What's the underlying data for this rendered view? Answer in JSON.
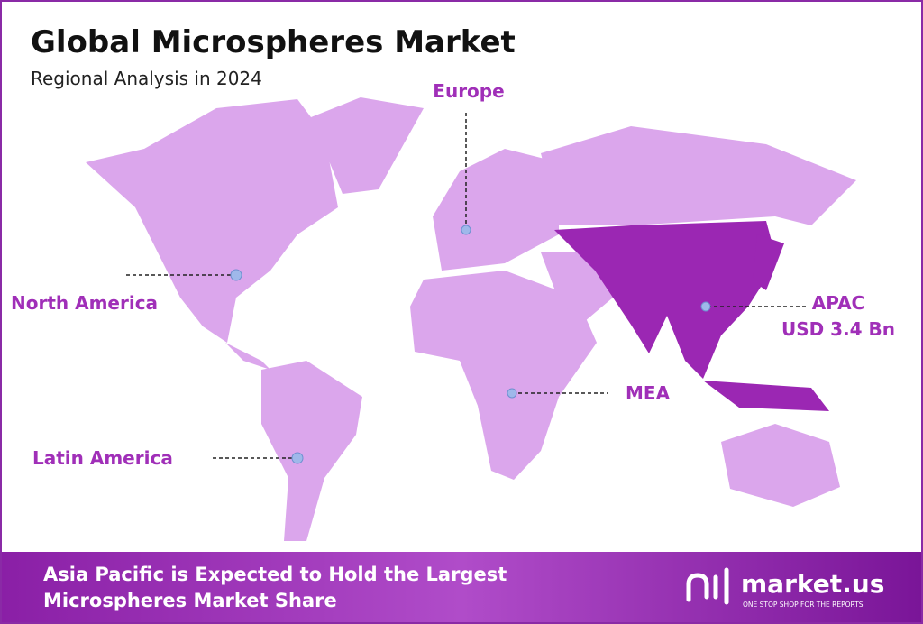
{
  "header": {
    "title": "Global Microspheres Market",
    "subtitle": "Regional Analysis in 2024"
  },
  "regions": [
    {
      "label": "Europe"
    },
    {
      "label": "North America"
    },
    {
      "label": "APAC",
      "value": "USD 3.4 Bn"
    },
    {
      "label": "MEA"
    },
    {
      "label": "Latin America"
    }
  ],
  "footer": {
    "lines": [
      "Asia Pacific is Expected to Hold the Largest",
      "Microspheres Market Share"
    ],
    "brand": "market.us",
    "tagline": "ONE STOP SHOP FOR THE REPORTS"
  }
}
